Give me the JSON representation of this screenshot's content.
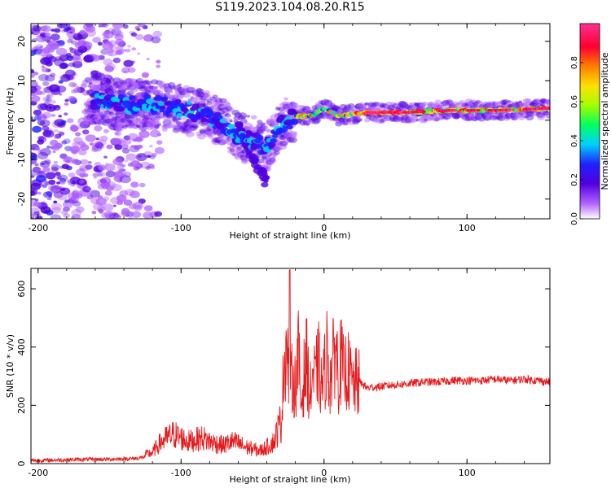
{
  "title": "S119.2023.104.08.20.R15",
  "colorbar": {
    "label": "Normalized spectral amplitude",
    "ticks": [
      "0.0",
      "0.2",
      "0.4",
      "0.6",
      "0.8"
    ],
    "range": [
      0,
      1
    ]
  },
  "chart_data": [
    {
      "type": "heatmap",
      "xlabel": "Height of straight line (km)",
      "ylabel": "Frequency (Hz)",
      "xlim": [
        -205,
        158
      ],
      "ylim": [
        -25,
        24.5
      ],
      "xticks": [
        "-200",
        "-100",
        "0",
        "100"
      ],
      "yticks": [
        "-20",
        "-10",
        "0",
        "10",
        "20"
      ],
      "colormap": [
        "#ffffff",
        "#b060ff",
        "#5000e0",
        "#2020ff",
        "#00d0ff",
        "#00ff60",
        "#a0ff00",
        "#ffe000",
        "#ff8000",
        "#ff0030",
        "#ff3090"
      ],
      "ridge": [
        {
          "x": -160,
          "y": 5
        },
        {
          "x": -140,
          "y": 4
        },
        {
          "x": -120,
          "y": 4
        },
        {
          "x": -100,
          "y": 3
        },
        {
          "x": -80,
          "y": 1
        },
        {
          "x": -70,
          "y": -1
        },
        {
          "x": -60,
          "y": -4
        },
        {
          "x": -50,
          "y": -5
        },
        {
          "x": -40,
          "y": -7
        },
        {
          "x": -35,
          "y": -5
        },
        {
          "x": -30,
          "y": -1
        },
        {
          "x": -20,
          "y": 1
        },
        {
          "x": -10,
          "y": 1
        },
        {
          "x": 0,
          "y": 3
        },
        {
          "x": 10,
          "y": 1
        },
        {
          "x": 30,
          "y": 2
        },
        {
          "x": 60,
          "y": 2
        },
        {
          "x": 90,
          "y": 2.5
        },
        {
          "x": 120,
          "y": 2.5
        },
        {
          "x": 158,
          "y": 3
        }
      ]
    },
    {
      "type": "line",
      "xlabel": "Height of straight line (km)",
      "ylabel": "SNR (10 * v/v)",
      "xlim": [
        -205,
        158
      ],
      "ylim": [
        0,
        670
      ],
      "xticks": [
        "-200",
        "-100",
        "0",
        "100"
      ],
      "yticks": [
        "0",
        "200",
        "400",
        "600"
      ],
      "color": "#e8191c",
      "series": [
        {
          "x": [
            -205,
            -190,
            -170,
            -150,
            -130,
            -120,
            -115,
            -110,
            -105,
            -100,
            -95,
            -90,
            -85,
            -80,
            -75,
            -70,
            -65,
            -60,
            -55,
            -50,
            -45,
            -40,
            -35,
            -30,
            -28,
            -26,
            -24,
            -22,
            -20,
            -18,
            -16,
            -14,
            -12,
            -10,
            -8,
            -6,
            -4,
            -2,
            0,
            2,
            4,
            6,
            8,
            10,
            12,
            14,
            16,
            18,
            20,
            25,
            30,
            40,
            50,
            60,
            70,
            80,
            90,
            100,
            110,
            120,
            130,
            140,
            150,
            158
          ],
          "y": [
            10,
            12,
            14,
            15,
            18,
            30,
            55,
            70,
            80,
            70,
            60,
            65,
            70,
            60,
            55,
            50,
            60,
            55,
            45,
            40,
            35,
            45,
            60,
            120,
            350,
            420,
            250,
            300,
            260,
            380,
            200,
            300,
            360,
            220,
            310,
            280,
            350,
            260,
            300,
            380,
            280,
            330,
            420,
            300,
            360,
            290,
            330,
            300,
            270,
            280,
            260,
            265,
            270,
            275,
            280,
            280,
            285,
            285,
            285,
            290,
            285,
            290,
            285,
            280
          ]
        }
      ]
    }
  ]
}
